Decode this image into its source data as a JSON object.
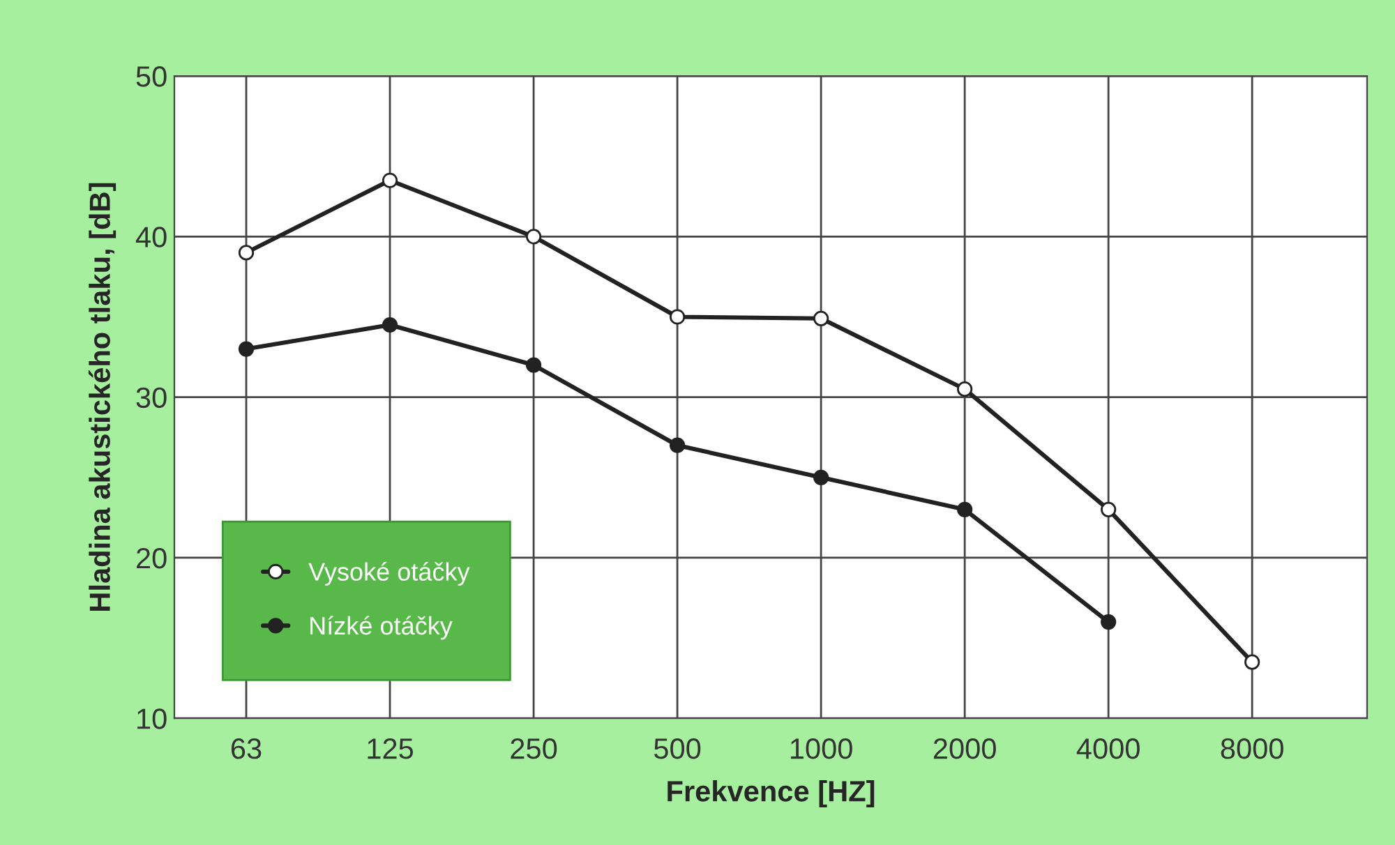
{
  "chart_data": {
    "type": "line",
    "xlabel": "Frekvence [HZ]",
    "ylabel": "Hladina akustického tlaku, [dB]",
    "categories": [
      "63",
      "125",
      "250",
      "500",
      "1000",
      "2000",
      "4000",
      "8000"
    ],
    "series": [
      {
        "name": "Vysoké otáčky",
        "color": "#222222",
        "values": [
          39.0,
          43.5,
          40.0,
          35.0,
          34.9,
          30.5,
          23.0,
          13.5
        ]
      },
      {
        "name": "Nízké otáčky",
        "color": "#222222",
        "values": [
          33.0,
          34.5,
          32.0,
          27.0,
          25.0,
          23.0,
          16.0,
          null
        ]
      }
    ],
    "ylim": [
      10,
      50
    ],
    "yticks": [
      10,
      20,
      30,
      40,
      50
    ],
    "grid": true,
    "legend": "bottom left",
    "marker": "circle",
    "line_style": "solid"
  }
}
